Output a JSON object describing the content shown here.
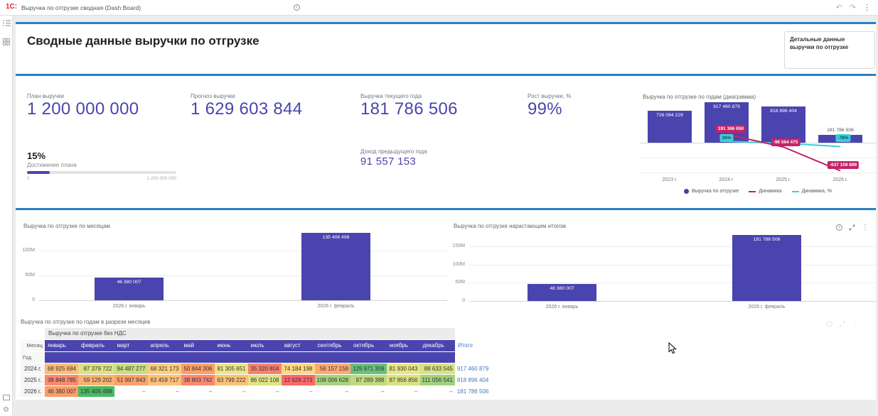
{
  "app": {
    "logo": "1С:",
    "title": "Выручка по отгрузке сводная (Dash Board)"
  },
  "icons": {
    "info": "i",
    "kebab": "⋮",
    "undo": "↶",
    "redo": "↷"
  },
  "colors": {
    "indigo": "#4a44ae",
    "blue_line": "#2b7fc3",
    "pink": "#c22368",
    "cyan": "#3ecfd8",
    "total_blue": "#4478be",
    "logo_red": "#e31e24"
  },
  "header": {
    "title": "Сводные данные выручки по отгрузке",
    "detail_button": "Детальные данные выручки по отгрузке"
  },
  "kpis": {
    "plan": {
      "label": "План выручки",
      "value": "1 200 000 000"
    },
    "forecast": {
      "label": "Прогноз выручки",
      "value": "1 629 603 844"
    },
    "current": {
      "label": "Выручка текущего года",
      "value": "181 786 506"
    },
    "growth": {
      "label": "Рост выручки, %",
      "value": "99%"
    },
    "prev_income": {
      "label": "Доход предыдущего года",
      "value": "91 557 153"
    },
    "plan_achievement": {
      "value": "15%",
      "label": "Достижение плана",
      "min": "0",
      "max": "1 200 000 000",
      "percent": 15
    }
  },
  "chart_data": [
    {
      "id": "years",
      "type": "bar+line",
      "title": "Выручка по отгрузке по годам (диаграмма)",
      "categories": [
        "2023 г.",
        "2024 г.",
        "2025 г.",
        "2026 г."
      ],
      "series": [
        {
          "name": "Выручка по отгрузке",
          "type": "bar",
          "color": "#4a44ae",
          "values": [
            726094229,
            917460879,
            818896404,
            181786506
          ],
          "labels": [
            "726 094 229",
            "917 460 879",
            "818 896 404",
            "181 786 506"
          ]
        },
        {
          "name": "Динамика",
          "type": "line",
          "color": "#c22368",
          "values": [
            null,
            191366650,
            -98564475,
            -637109899
          ],
          "labels": [
            null,
            "191 366 650",
            "-98 564 475",
            "-637 109 899"
          ]
        },
        {
          "name": "Динамика, %",
          "type": "line",
          "color": "#3ecfd8",
          "values": [
            null,
            26,
            null,
            -78
          ],
          "labels": [
            null,
            "26%",
            null,
            "-78%"
          ]
        }
      ],
      "legend": [
        "Выручка по отгрузке",
        "Динамика",
        "Динамика, %"
      ],
      "legend_position": "bottom",
      "grid": true
    },
    {
      "id": "monthly",
      "type": "bar",
      "title": "Выручка по отгрузке по месяцам",
      "categories": [
        "2026 г.  январь",
        "2026 г.  февраль"
      ],
      "values": [
        46380007,
        135406498
      ],
      "labels": [
        "46 380 007",
        "135 406 498"
      ],
      "yticks": [
        {
          "v": 0,
          "label": "0"
        },
        {
          "v": 50000000,
          "label": "50M"
        },
        {
          "v": 100000000,
          "label": "100M"
        }
      ],
      "ylim": [
        0,
        140000000
      ],
      "grid": true
    },
    {
      "id": "cumulative",
      "type": "bar",
      "title": "Выручка по отгрузке нарастающим итогом",
      "categories": [
        "2026 г.  январь",
        "2026 г.  февраль"
      ],
      "values": [
        46380007,
        181786506
      ],
      "labels": [
        "46 380 007",
        "181 786 506"
      ],
      "yticks": [
        {
          "v": 0,
          "label": "0"
        },
        {
          "v": 50000000,
          "label": "50M"
        },
        {
          "v": 100000000,
          "label": "100M"
        },
        {
          "v": 150000000,
          "label": "150M"
        }
      ],
      "ylim": [
        0,
        193000000
      ],
      "grid": true
    },
    {
      "id": "pivot",
      "type": "table",
      "title": "Выручка по отгрузке по годам в разрезе месяцев",
      "measure_header": "Выручка по отгрузке без НДС",
      "col_dim": "Месяц",
      "row_dim": "Год",
      "total_header": "Итого",
      "months": [
        "январь",
        "февраль",
        "март",
        "апрель",
        "май",
        "июнь",
        "июль",
        "август",
        "сентябрь",
        "октябрь",
        "ноябрь",
        "декабрь"
      ],
      "rows": [
        {
          "year": "2024 г.",
          "total": "917 460 879",
          "cells": [
            {
              "v": "68 925 694",
              "c": "#fbbc78"
            },
            {
              "v": "87 379 722",
              "c": "#dce382"
            },
            {
              "v": "94 487 277",
              "c": "#c9dd80"
            },
            {
              "v": "68 321 173",
              "c": "#fccd7c"
            },
            {
              "v": "50 844 306",
              "c": "#faa068"
            },
            {
              "v": "81 305 651",
              "c": "#ece684"
            },
            {
              "v": "35 320 804",
              "c": "#f8826e"
            },
            {
              "v": "74 184 198",
              "c": "#fdd97f"
            },
            {
              "v": "56 157 158",
              "c": "#fbaa70"
            },
            {
              "v": "129 971 309",
              "c": "#68c07c"
            },
            {
              "v": "81 930 043",
              "c": "#eae583"
            },
            {
              "v": "88 633 545",
              "c": "#d9e282"
            }
          ]
        },
        {
          "year": "2025 г.",
          "total": "818 896 404",
          "cells": [
            {
              "v": "38 848 785",
              "c": "#f88a70"
            },
            {
              "v": "59 129 202",
              "c": "#fbb174"
            },
            {
              "v": "51 997 943",
              "c": "#faa26a"
            },
            {
              "v": "63 459 717",
              "c": "#fcc077"
            },
            {
              "v": "38 803 742",
              "c": "#f88a70"
            },
            {
              "v": "63 799 222",
              "c": "#fcc177"
            },
            {
              "v": "86 022 108",
              "c": "#e0e383"
            },
            {
              "v": "12 626 273",
              "c": "#f8696b"
            },
            {
              "v": "108 006 628",
              "c": "#a8d37f"
            },
            {
              "v": "97 289 388",
              "c": "#c0da80"
            },
            {
              "v": "87 856 856",
              "c": "#dbe282"
            },
            {
              "v": "111 056 541",
              "c": "#a2d17e"
            }
          ]
        },
        {
          "year": "2026 г.",
          "total": "181 786 506",
          "cells": [
            {
              "v": "46 380 007",
              "c": "#fa9d6b"
            },
            {
              "v": "135 406 498",
              "c": "#4bb964"
            },
            {
              "v": "–",
              "c": null
            },
            {
              "v": "–",
              "c": null
            },
            {
              "v": "–",
              "c": null
            },
            {
              "v": "–",
              "c": null
            },
            {
              "v": "–",
              "c": null
            },
            {
              "v": "–",
              "c": null
            },
            {
              "v": "–",
              "c": null
            },
            {
              "v": "–",
              "c": null
            },
            {
              "v": "–",
              "c": null
            },
            {
              "v": "–",
              "c": null
            }
          ]
        }
      ]
    }
  ]
}
